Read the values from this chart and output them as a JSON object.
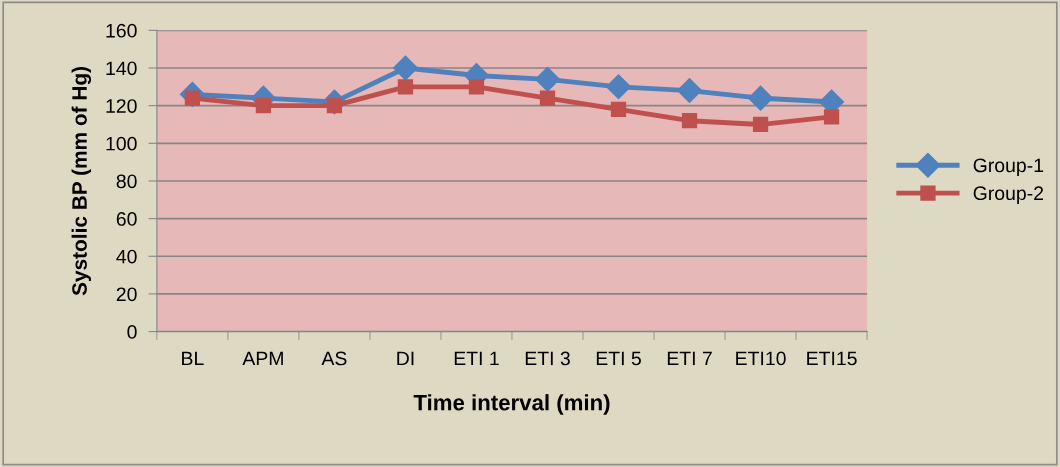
{
  "chart_data": {
    "type": "line",
    "xlabel": "Time interval (min)",
    "ylabel": "Systolic BP (mm of Hg)",
    "categories": [
      "BL",
      "APM",
      "AS",
      "DI",
      "ETI 1",
      "ETI 3",
      "ETI 5",
      "ETI 7",
      "ETI10",
      "ETI15"
    ],
    "series": [
      {
        "name": "Group-1",
        "color": "#4f81bd",
        "marker": "diamond",
        "values": [
          126,
          124,
          122,
          140,
          136,
          134,
          130,
          128,
          124,
          122
        ]
      },
      {
        "name": "Group-2",
        "color": "#c0504d",
        "marker": "square",
        "values": [
          124,
          120,
          120,
          130,
          130,
          124,
          118,
          112,
          110,
          114
        ]
      }
    ],
    "ylim": [
      0,
      160
    ],
    "yticks": [
      0,
      20,
      40,
      60,
      80,
      100,
      120,
      140,
      160
    ],
    "grid": "y",
    "legend": "right",
    "line_style": "solid"
  }
}
